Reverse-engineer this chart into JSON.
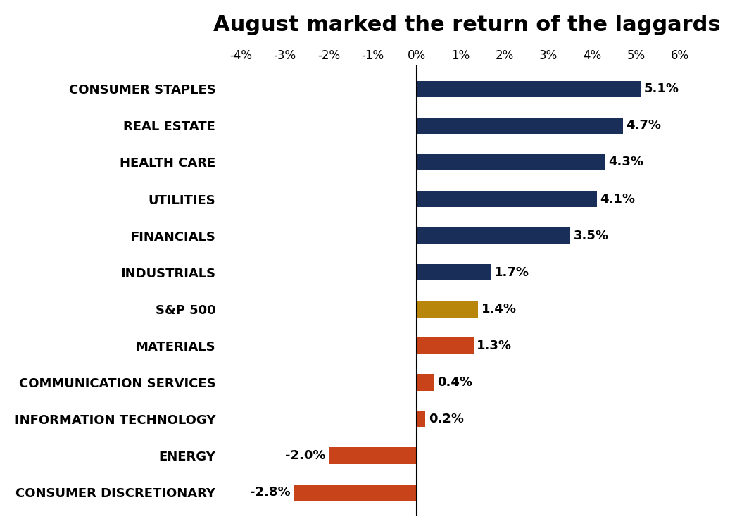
{
  "title": "August marked the return of the laggards",
  "categories": [
    "CONSUMER DISCRETIONARY",
    "ENERGY",
    "INFORMATION TECHNOLOGY",
    "COMMUNICATION SERVICES",
    "MATERIALS",
    "S&P 500",
    "INDUSTRIALS",
    "FINANCIALS",
    "UTILITIES",
    "HEALTH CARE",
    "REAL ESTATE",
    "CONSUMER STAPLES"
  ],
  "values": [
    -2.8,
    -2.0,
    0.2,
    0.4,
    1.3,
    1.4,
    1.7,
    3.5,
    4.1,
    4.3,
    4.7,
    5.1
  ],
  "colors": [
    "#C8431A",
    "#C8431A",
    "#C8431A",
    "#C8431A",
    "#C8431A",
    "#B8860B",
    "#1A2E5A",
    "#1A2E5A",
    "#1A2E5A",
    "#1A2E5A",
    "#1A2E5A",
    "#1A2E5A"
  ],
  "xlim": [
    -4.5,
    6.8
  ],
  "xticks": [
    -4,
    -3,
    -2,
    -1,
    0,
    1,
    2,
    3,
    4,
    5,
    6
  ],
  "title_fontsize": 22,
  "label_fontsize": 13,
  "value_fontsize": 13,
  "xtick_fontsize": 12,
  "background_color": "#FFFFFF",
  "bar_height": 0.45
}
